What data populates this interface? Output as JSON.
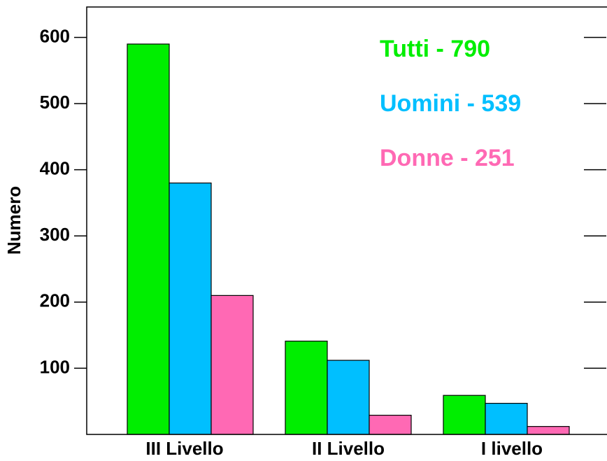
{
  "chart_data": {
    "type": "bar",
    "ylabel": "Numero",
    "categories": [
      "III Livello",
      "II Livello",
      "I livello"
    ],
    "series": [
      {
        "name": "Tutti - 790",
        "color": "#00ee00",
        "values": [
          590,
          141,
          59
        ]
      },
      {
        "name": "Uomini - 539",
        "color": "#00bfff",
        "values": [
          380,
          112,
          47
        ]
      },
      {
        "name": "Donne - 251",
        "color": "#ff69b4",
        "values": [
          210,
          29,
          12
        ]
      }
    ],
    "ylim": [
      0,
      646
    ],
    "yticks": [
      100,
      200,
      300,
      400,
      500,
      600
    ]
  }
}
